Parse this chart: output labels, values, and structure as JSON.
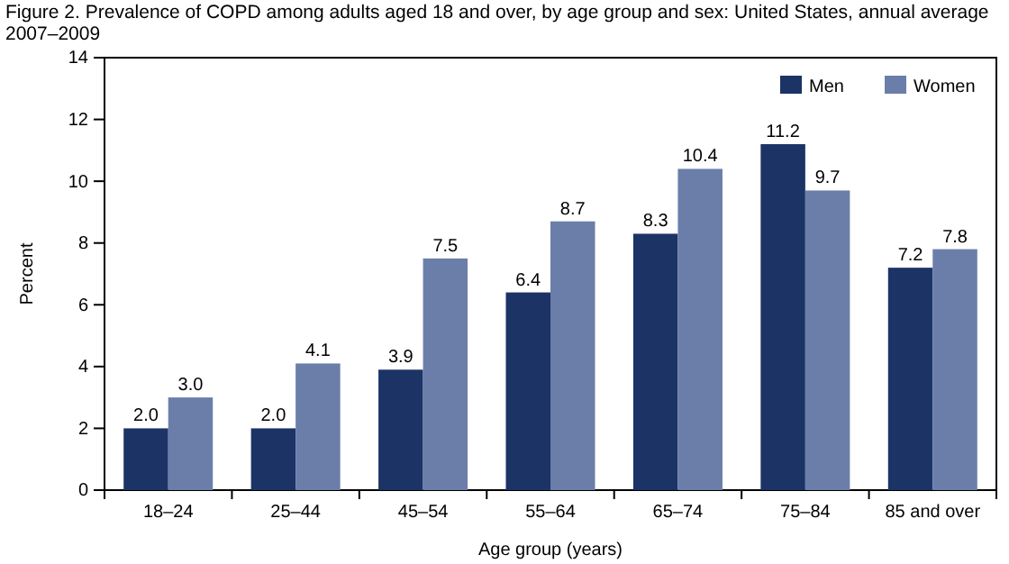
{
  "chart_data": {
    "type": "bar",
    "title": "Figure 2. Prevalence of COPD among adults aged 18 and over, by age group and sex: United States, annual average 2007–2009",
    "xlabel": "Age group (years)",
    "ylabel": "Percent",
    "categories": [
      "18–24",
      "25–44",
      "45–54",
      "55–64",
      "65–74",
      "75–84",
      "85 and over"
    ],
    "series": [
      {
        "name": "Men",
        "color": "#1c3366",
        "values": [
          2.0,
          2.0,
          3.9,
          6.4,
          8.3,
          11.2,
          7.2
        ],
        "value_labels": [
          "2.0",
          "2.0",
          "3.9",
          "6.4",
          "8.3",
          "11.2",
          "7.2"
        ]
      },
      {
        "name": "Women",
        "color": "#6b7eaa",
        "values": [
          3.0,
          4.1,
          7.5,
          8.7,
          10.4,
          9.7,
          7.8
        ],
        "value_labels": [
          "3.0",
          "4.1",
          "7.5",
          "8.7",
          "10.4",
          "9.7",
          "7.8"
        ]
      }
    ],
    "ylim": [
      0,
      14
    ],
    "yticks": [
      0,
      2,
      4,
      6,
      8,
      10,
      12,
      14
    ],
    "legend": "top right",
    "grid": false
  }
}
